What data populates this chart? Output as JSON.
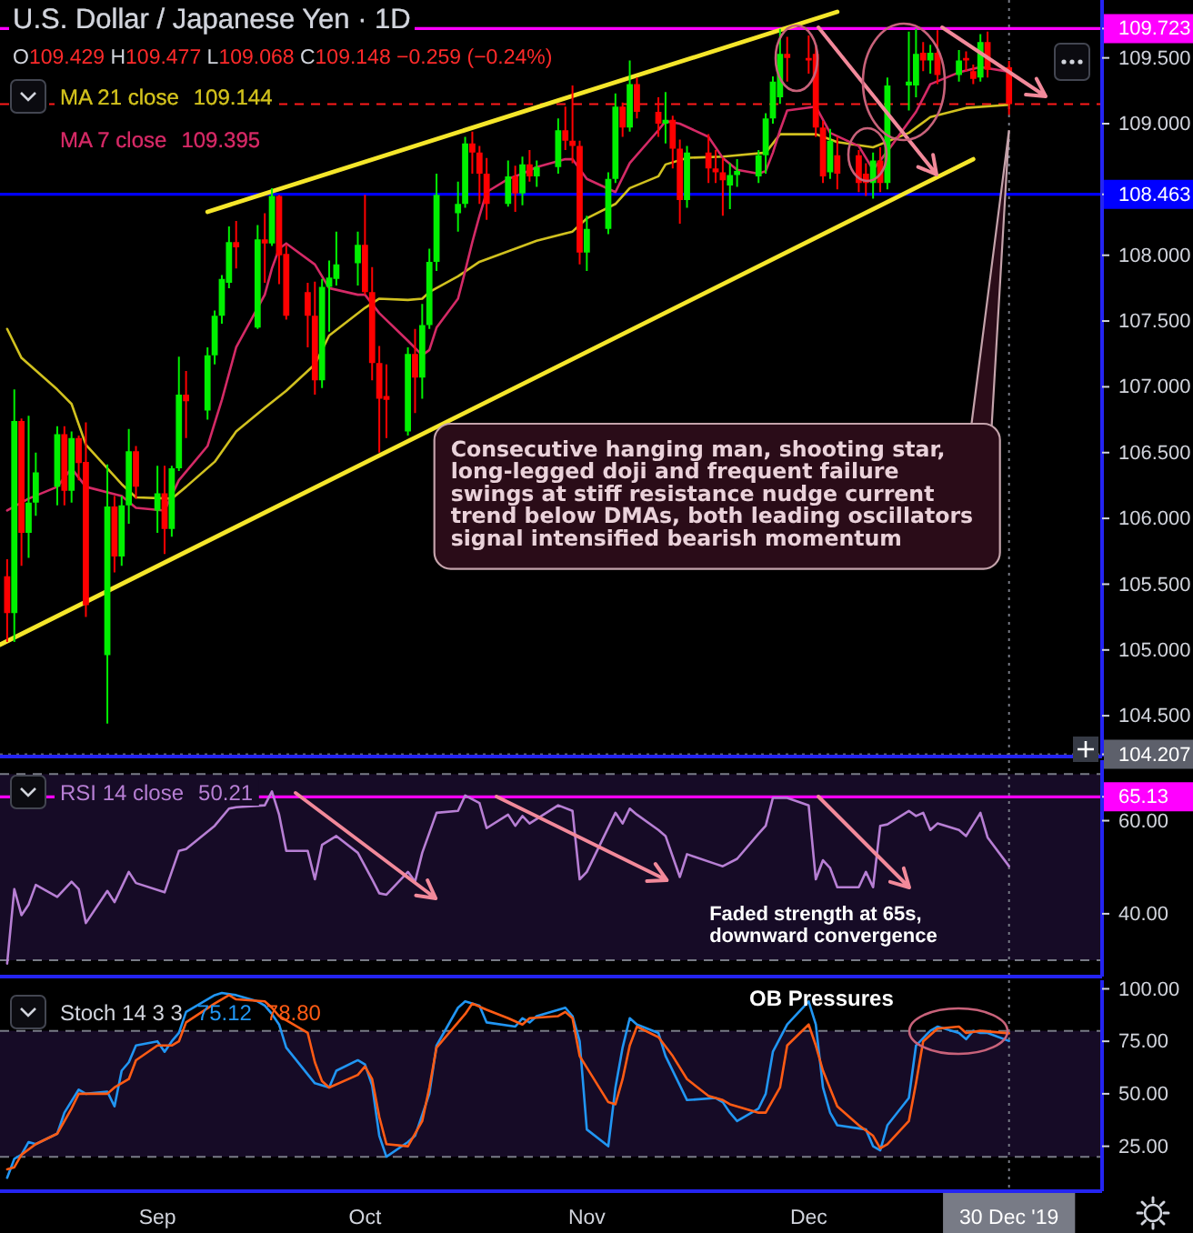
{
  "chart_data": [
    {
      "type": "candlestick",
      "title": "U.S. Dollar / Japanese Yen · 1D",
      "subtitle": "O109.429 H109.477 L109.068 C109.148 −0.259 (−0.24%)",
      "x": [
        "2019-08-12",
        "2019-08-13",
        "2019-08-14",
        "2019-08-15",
        "2019-08-16",
        "2019-08-19",
        "2019-08-20",
        "2019-08-21",
        "2019-08-22",
        "2019-08-23",
        "2019-08-26",
        "2019-08-27",
        "2019-08-28",
        "2019-08-29",
        "2019-08-30",
        "2019-09-02",
        "2019-09-03",
        "2019-09-04",
        "2019-09-05",
        "2019-09-06",
        "2019-09-09",
        "2019-09-10",
        "2019-09-11",
        "2019-09-12",
        "2019-09-13",
        "2019-09-16",
        "2019-09-17",
        "2019-09-18",
        "2019-09-19",
        "2019-09-20",
        "2019-09-23",
        "2019-09-24",
        "2019-09-25",
        "2019-09-26",
        "2019-09-27",
        "2019-09-30",
        "2019-10-01",
        "2019-10-02",
        "2019-10-03",
        "2019-10-04",
        "2019-10-07",
        "2019-10-08",
        "2019-10-09",
        "2019-10-10",
        "2019-10-11",
        "2019-10-14",
        "2019-10-15",
        "2019-10-16",
        "2019-10-17",
        "2019-10-18",
        "2019-10-21",
        "2019-10-22",
        "2019-10-23",
        "2019-10-24",
        "2019-10-25",
        "2019-10-28",
        "2019-10-29",
        "2019-10-30",
        "2019-10-31",
        "2019-11-01",
        "2019-11-04",
        "2019-11-05",
        "2019-11-06",
        "2019-11-07",
        "2019-11-08",
        "2019-11-11",
        "2019-11-12",
        "2019-11-13",
        "2019-11-14",
        "2019-11-15",
        "2019-11-18",
        "2019-11-19",
        "2019-11-20",
        "2019-11-21",
        "2019-11-22",
        "2019-11-25",
        "2019-11-26",
        "2019-11-27",
        "2019-11-28",
        "2019-11-29",
        "2019-12-02",
        "2019-12-03",
        "2019-12-04",
        "2019-12-05",
        "2019-12-06",
        "2019-12-09",
        "2019-12-10",
        "2019-12-11",
        "2019-12-12",
        "2019-12-13",
        "2019-12-16",
        "2019-12-17",
        "2019-12-18",
        "2019-12-19",
        "2019-12-20",
        "2019-12-23",
        "2019-12-24",
        "2019-12-25",
        "2019-12-26",
        "2019-12-27",
        "2019-12-30"
      ],
      "ohlc": [
        [
          105.56,
          105.69,
          105.06,
          105.28
        ],
        [
          105.28,
          106.98,
          105.06,
          106.74
        ],
        [
          106.74,
          106.76,
          105.64,
          105.89
        ],
        [
          105.89,
          106.78,
          105.7,
          106.12
        ],
        [
          106.12,
          106.5,
          106.02,
          106.35
        ],
        [
          106.24,
          106.7,
          106.1,
          106.64
        ],
        [
          106.64,
          106.7,
          106.1,
          106.21
        ],
        [
          106.21,
          106.66,
          106.12,
          106.61
        ],
        [
          106.61,
          106.63,
          106.29,
          106.42
        ],
        [
          106.43,
          106.73,
          105.25,
          105.34
        ],
        [
          104.96,
          106.41,
          104.44,
          106.09
        ],
        [
          106.09,
          106.17,
          105.59,
          105.71
        ],
        [
          105.71,
          106.17,
          105.64,
          106.1
        ],
        [
          106.1,
          106.68,
          105.96,
          106.51
        ],
        [
          106.51,
          106.55,
          106.15,
          106.24
        ],
        [
          106.06,
          106.4,
          105.89,
          106.19
        ],
        [
          106.19,
          106.4,
          105.73,
          105.92
        ],
        [
          105.92,
          106.4,
          105.86,
          106.38
        ],
        [
          106.38,
          107.23,
          106.36,
          106.94
        ],
        [
          106.94,
          107.12,
          106.61,
          106.89
        ],
        [
          106.82,
          107.3,
          106.75,
          107.24
        ],
        [
          107.24,
          107.58,
          107.17,
          107.54
        ],
        [
          107.54,
          107.85,
          107.48,
          107.82
        ],
        [
          107.79,
          108.22,
          107.75,
          108.1
        ],
        [
          108.1,
          108.26,
          107.9,
          108.06
        ],
        [
          107.45,
          108.23,
          107.44,
          108.12
        ],
        [
          108.12,
          108.32,
          107.79,
          108.09
        ],
        [
          108.09,
          108.51,
          108.07,
          108.45
        ],
        [
          108.45,
          108.46,
          107.78,
          108
        ],
        [
          108.01,
          108.08,
          107.51,
          107.54
        ],
        [
          107.72,
          107.79,
          107.3,
          107.54
        ],
        [
          107.54,
          107.8,
          106.94,
          107.05
        ],
        [
          107.05,
          107.82,
          106.99,
          107.76
        ],
        [
          107.76,
          107.96,
          107.42,
          107.83
        ],
        [
          107.82,
          108.18,
          107.77,
          107.93
        ],
        [
          107.94,
          108.18,
          107.77,
          108.08
        ],
        [
          108.08,
          108.46,
          107.7,
          107.72
        ],
        [
          107.72,
          107.91,
          107.05,
          107.18
        ],
        [
          107.18,
          107.31,
          106.5,
          106.91
        ],
        [
          106.93,
          107.17,
          106.61,
          106.9
        ],
        [
          106.66,
          107.3,
          106.63,
          107.25
        ],
        [
          107.25,
          107.44,
          106.8,
          107.07
        ],
        [
          107.07,
          107.63,
          106.91,
          107.47
        ],
        [
          107.47,
          108.05,
          107.44,
          107.95
        ],
        [
          107.95,
          108.62,
          107.88,
          108.46
        ],
        [
          108.32,
          108.56,
          108.18,
          108.39
        ],
        [
          108.39,
          108.9,
          108.36,
          108.85
        ],
        [
          108.85,
          108.94,
          108.62,
          108.78
        ],
        [
          108.78,
          108.83,
          108.39,
          108.62
        ],
        [
          108.62,
          108.74,
          108.27,
          108.39
        ],
        [
          108.39,
          108.72,
          108.37,
          108.6
        ],
        [
          108.6,
          108.68,
          108.33,
          108.47
        ],
        [
          108.47,
          108.75,
          108.38,
          108.69
        ],
        [
          108.69,
          108.8,
          108.56,
          108.6
        ],
        [
          108.6,
          108.72,
          108.52,
          108.67
        ],
        [
          108.67,
          109.04,
          108.62,
          108.95
        ],
        [
          108.95,
          109.13,
          108.8,
          108.87
        ],
        [
          108.87,
          109.29,
          108.7,
          108.83
        ],
        [
          108.83,
          108.87,
          107.93,
          108.02
        ],
        [
          108.02,
          108.3,
          107.88,
          108.2
        ],
        [
          108.2,
          108.63,
          108.16,
          108.58
        ],
        [
          108.58,
          109.23,
          108.55,
          109.13
        ],
        [
          109.13,
          109.16,
          108.9,
          108.97
        ],
        [
          108.97,
          109.48,
          108.94,
          109.3
        ],
        [
          109.3,
          109.35,
          109.04,
          109.09
        ],
        [
          109.09,
          109.2,
          108.9,
          109
        ],
        [
          109,
          109.24,
          108.85,
          109.03
        ],
        [
          109.03,
          109.06,
          108.66,
          108.81
        ],
        [
          108.81,
          108.88,
          108.24,
          108.42
        ],
        [
          108.42,
          108.83,
          108.36,
          108.78
        ],
        [
          108.78,
          108.92,
          108.55,
          108.66
        ],
        [
          108.66,
          108.8,
          108.55,
          108.63
        ],
        [
          108.63,
          108.74,
          108.3,
          108.57
        ],
        [
          108.53,
          108.7,
          108.35,
          108.61
        ],
        [
          108.61,
          108.73,
          108.52,
          108.64
        ],
        [
          108.6,
          108.8,
          108.55,
          108.76
        ],
        [
          108.76,
          109.08,
          108.62,
          109.04
        ],
        [
          109.04,
          109.36,
          109,
          109.32
        ],
        [
          109.2,
          109.72,
          109.15,
          109.53
        ],
        [
          109.53,
          109.66,
          109.32,
          109.5
        ],
        [
          109.5,
          109.67,
          109.38,
          109.48
        ],
        [
          109.53,
          109.6,
          108.9,
          108.97
        ],
        [
          108.97,
          109.02,
          108.55,
          108.6
        ],
        [
          108.63,
          108.96,
          108.58,
          108.87
        ],
        [
          108.76,
          108.9,
          108.5,
          108.62
        ],
        [
          108.76,
          108.8,
          108.48,
          108.55
        ],
        [
          108.62,
          108.7,
          108.45,
          108.55
        ],
        [
          108.55,
          108.78,
          108.43,
          108.72
        ],
        [
          108.72,
          108.82,
          108.48,
          108.55
        ],
        [
          108.55,
          109.35,
          108.5,
          109.29
        ],
        [
          109.29,
          109.7,
          109.1,
          109.32
        ],
        [
          109.29,
          109.72,
          109.2,
          109.53
        ],
        [
          109.54,
          109.62,
          109.4,
          109.48
        ],
        [
          109.48,
          109.6,
          109.38,
          109.54
        ],
        [
          109.54,
          109.71,
          109.3,
          109.37
        ],
        [
          109.37,
          109.56,
          109.32,
          109.48
        ],
        [
          109.5,
          109.55,
          109.4,
          109.48
        ],
        [
          109.4,
          109.45,
          109.3,
          109.34
        ],
        [
          109.35,
          109.68,
          109.32,
          109.62
        ],
        [
          109.62,
          109.7,
          109.35,
          109.41
        ],
        [
          109.429,
          109.477,
          109.068,
          109.148
        ]
      ],
      "series": [
        {
          "name": "MA 21 close",
          "type": "line",
          "color": "#d1c11f",
          "x": [
            "2019-08-12",
            "2019-08-14",
            "2019-08-19",
            "2019-08-21",
            "2019-08-23",
            "2019-08-28",
            "2019-08-30",
            "2019-09-04",
            "2019-09-06",
            "2019-09-10",
            "2019-09-13",
            "2019-09-17",
            "2019-09-20",
            "2019-09-24",
            "2019-09-26",
            "2019-10-01",
            "2019-10-03",
            "2019-10-07",
            "2019-10-09",
            "2019-10-10",
            "2019-10-14",
            "2019-10-17",
            "2019-10-22",
            "2019-10-25",
            "2019-10-30",
            "2019-11-01",
            "2019-11-05",
            "2019-11-07",
            "2019-11-11",
            "2019-11-12",
            "2019-11-15",
            "2019-11-20",
            "2019-11-26",
            "2019-11-28",
            "2019-12-03",
            "2019-12-06",
            "2019-12-11",
            "2019-12-16",
            "2019-12-19",
            "2019-12-24",
            "2019-12-30"
          ],
          "values": [
            107.44,
            107.22,
            106.98,
            106.87,
            106.56,
            106.26,
            106.16,
            106.15,
            106.24,
            106.43,
            106.66,
            106.84,
            106.97,
            107.17,
            107.39,
            107.6,
            107.67,
            107.66,
            107.67,
            107.72,
            107.84,
            107.95,
            108.05,
            108.11,
            108.18,
            108.28,
            108.39,
            108.51,
            108.6,
            108.69,
            108.74,
            108.75,
            108.78,
            108.92,
            108.92,
            108.86,
            108.82,
            108.93,
            109.05,
            109.12,
            109.144
          ]
        },
        {
          "name": "MA 7 close",
          "type": "line",
          "color": "#d42a66",
          "x": [
            "2019-08-12",
            "2019-08-15",
            "2019-08-19",
            "2019-08-21",
            "2019-08-23",
            "2019-08-28",
            "2019-08-30",
            "2019-09-03",
            "2019-09-05",
            "2019-09-09",
            "2019-09-11",
            "2019-09-13",
            "2019-09-17",
            "2019-09-18",
            "2019-09-19",
            "2019-09-20",
            "2019-09-24",
            "2019-09-26",
            "2019-09-30",
            "2019-10-01",
            "2019-10-03",
            "2019-10-07",
            "2019-10-09",
            "2019-10-10",
            "2019-10-11",
            "2019-10-14",
            "2019-10-15",
            "2019-10-16",
            "2019-10-17",
            "2019-10-18",
            "2019-10-21",
            "2019-10-23",
            "2019-10-25",
            "2019-10-29",
            "2019-10-30",
            "2019-11-01",
            "2019-11-05",
            "2019-11-07",
            "2019-11-11",
            "2019-11-12",
            "2019-11-14",
            "2019-11-18",
            "2019-11-20",
            "2019-11-22",
            "2019-11-25",
            "2019-11-26",
            "2019-11-27",
            "2019-11-28",
            "2019-11-29",
            "2019-12-03",
            "2019-12-05",
            "2019-12-09",
            "2019-12-11",
            "2019-12-13",
            "2019-12-17",
            "2019-12-19",
            "2019-12-23",
            "2019-12-26",
            "2019-12-30"
          ],
          "values": [
            106.06,
            106.15,
            106.24,
            106.38,
            106.24,
            106.17,
            106.08,
            106.06,
            106.29,
            106.55,
            106.9,
            107.3,
            107.7,
            107.9,
            108.05,
            108.09,
            107.93,
            107.75,
            107.7,
            107.7,
            107.56,
            107.35,
            107.24,
            107.28,
            107.45,
            107.67,
            107.88,
            108.1,
            108.3,
            108.48,
            108.58,
            108.62,
            108.67,
            108.73,
            108.73,
            108.58,
            108.48,
            108.7,
            108.95,
            109.02,
            109,
            108.9,
            108.74,
            108.65,
            108.62,
            108.64,
            108.78,
            108.95,
            109.1,
            109.13,
            108.93,
            108.83,
            108.65,
            108.79,
            109.09,
            109.3,
            109.39,
            109.43,
            109.395
          ]
        },
        {
          "type": "line",
          "color": "#f5e62a",
          "x": [
            "2019-09-09",
            "2019-12-06"
          ],
          "values": [
            108.33,
            109.85
          ]
        },
        {
          "type": "line",
          "color": "#f5e62a",
          "x": [
            "2019-08-11",
            "2019-12-25"
          ],
          "values": [
            105.04,
            108.73
          ]
        }
      ],
      "xlim": [
        "2019-08-11",
        "2020-01-12"
      ],
      "ylim": [
        104.19,
        109.94
      ],
      "yticks": [
        {
          "value": 104.207,
          "label": "104.207"
        },
        {
          "value": 104.5,
          "label": "104.500"
        },
        {
          "value": 105,
          "label": "105.000"
        },
        {
          "value": 105.5,
          "label": "105.500"
        },
        {
          "value": 106,
          "label": "106.000"
        },
        {
          "value": 106.5,
          "label": "106.500"
        },
        {
          "value": 107,
          "label": "107.000"
        },
        {
          "value": 107.5,
          "label": "107.500"
        },
        {
          "value": 108,
          "label": "108.000"
        },
        {
          "value": 108.463,
          "label": "108.463"
        },
        {
          "value": 109,
          "label": "109.000"
        },
        {
          "value": 109.5,
          "label": "109.500"
        },
        {
          "value": 109.723,
          "label": "109.723"
        }
      ],
      "tick_labels": "y",
      "legend": "top left",
      "ref_lines": [
        {
          "axis": "y",
          "value": 109.723,
          "color": "#ff00ff"
        },
        {
          "axis": "y",
          "value": 108.463,
          "color": "#0000ff"
        },
        {
          "axis": "y",
          "value": 109.148,
          "color": "#ff1a1a",
          "line_style": "dashed"
        },
        {
          "axis": "y",
          "value": 104.207,
          "color": "#5d606b",
          "line_style": "dotted"
        },
        {
          "axis": "x",
          "value": "2019-12-30",
          "color": "#787b86",
          "line_style": "dotted"
        }
      ],
      "annotations": [
        {
          "text": "Consecutive hanging man, shooting star, long-legged doji and frequent failure swings at stiff resistance nudge current trend below DMAs, both leading oscillators signal intensified bearish momentum",
          "x": "2019-12-30",
          "y": 108.95
        },
        "109.144",
        "109.395"
      ]
    },
    {
      "type": "line",
      "series": [
        {
          "name": "RSI 14 close",
          "color": "#b77fd4",
          "x": [
            "2019-08-12",
            "2019-08-13",
            "2019-08-14",
            "2019-08-15",
            "2019-08-16",
            "2019-08-19",
            "2019-08-21",
            "2019-08-22",
            "2019-08-23",
            "2019-08-26",
            "2019-08-27",
            "2019-08-29",
            "2019-08-30",
            "2019-09-03",
            "2019-09-05",
            "2019-09-06",
            "2019-09-10",
            "2019-09-12",
            "2019-09-13",
            "2019-09-17",
            "2019-09-18",
            "2019-09-19",
            "2019-09-20",
            "2019-09-23",
            "2019-09-24",
            "2019-09-25",
            "2019-09-27",
            "2019-09-30",
            "2019-10-02",
            "2019-10-03",
            "2019-10-04",
            "2019-10-07",
            "2019-10-08",
            "2019-10-09",
            "2019-10-11",
            "2019-10-14",
            "2019-10-15",
            "2019-10-17",
            "2019-10-18",
            "2019-10-21",
            "2019-10-22",
            "2019-10-23",
            "2019-10-24",
            "2019-10-28",
            "2019-10-30",
            "2019-10-31",
            "2019-11-01",
            "2019-11-05",
            "2019-11-06",
            "2019-11-07",
            "2019-11-08",
            "2019-11-11",
            "2019-11-12",
            "2019-11-13",
            "2019-11-14",
            "2019-11-15",
            "2019-11-19",
            "2019-11-20",
            "2019-11-22",
            "2019-11-25",
            "2019-11-26",
            "2019-11-27",
            "2019-11-29",
            "2019-12-02",
            "2019-12-03",
            "2019-12-04",
            "2019-12-05",
            "2019-12-06",
            "2019-12-09",
            "2019-12-10",
            "2019-12-11",
            "2019-12-12",
            "2019-12-13",
            "2019-12-16",
            "2019-12-17",
            "2019-12-18",
            "2019-12-19",
            "2019-12-20",
            "2019-12-23",
            "2019-12-24",
            "2019-12-26",
            "2019-12-27",
            "2019-12-30"
          ],
          "values": [
            29.3,
            45.3,
            39.7,
            42,
            46.2,
            43.6,
            46.9,
            45.3,
            38,
            44.9,
            42.5,
            49,
            46.6,
            44.6,
            53.5,
            53.9,
            58.9,
            62.6,
            62.9,
            63.3,
            66.3,
            61.3,
            53.5,
            53.5,
            47.4,
            54.8,
            56.7,
            53.1,
            47.4,
            44.4,
            44.1,
            49,
            46.9,
            53.1,
            61.7,
            62.1,
            65.4,
            63.8,
            58.4,
            61.3,
            58.9,
            61,
            59.4,
            63.3,
            62.1,
            47.4,
            49,
            61.7,
            59.4,
            62.6,
            61.3,
            58,
            56.7,
            52.3,
            47.9,
            52.8,
            50.7,
            50.2,
            51.8,
            57.2,
            58.9,
            64.9,
            64.9,
            63.3,
            47.4,
            51.5,
            49.8,
            45.7,
            45.7,
            49,
            45.7,
            58.9,
            59.2,
            62.1,
            61,
            61.7,
            58,
            59.4,
            58,
            56.7,
            61.7,
            56.4,
            50.21
          ]
        }
      ],
      "xlim": [
        "2019-08-11",
        "2020-01-12"
      ],
      "ylim": [
        26.5,
        73
      ],
      "yticks": [
        {
          "value": 40,
          "label": "40.00"
        },
        {
          "value": 60,
          "label": "60.00"
        },
        {
          "value": 65.13,
          "label": "65.13"
        }
      ],
      "tick_labels": "y",
      "legend": "top left",
      "bands": [
        {
          "axis": "y",
          "from": 30,
          "to": 70,
          "color": "#160b26"
        }
      ],
      "ref_lines": [
        {
          "axis": "y",
          "value": 65.13,
          "color": "#ff00ff"
        },
        {
          "axis": "y",
          "value": 70,
          "color": "#787b86",
          "line_style": "dashed"
        },
        {
          "axis": "y",
          "value": 30,
          "color": "#787b86",
          "line_style": "dashed"
        },
        {
          "axis": "x",
          "value": "2019-12-30",
          "color": "#787b86",
          "line_style": "dotted"
        }
      ],
      "annotations": [
        {
          "text": "Faded strength at 65s, downward convergence",
          "x": "2019-12-11",
          "y": 45.7
        },
        "50.21"
      ]
    },
    {
      "type": "line",
      "title": "Stoch 14 3 3",
      "series": [
        {
          "color": "#2196f3",
          "x": [
            "2019-08-12",
            "2019-08-13",
            "2019-08-14",
            "2019-08-15",
            "2019-08-16",
            "2019-08-19",
            "2019-08-20",
            "2019-08-22",
            "2019-08-23",
            "2019-08-26",
            "2019-08-27",
            "2019-08-28",
            "2019-08-29",
            "2019-08-30",
            "2019-09-02",
            "2019-09-03",
            "2019-09-04",
            "2019-09-05",
            "2019-09-06",
            "2019-09-10",
            "2019-09-11",
            "2019-09-13",
            "2019-09-16",
            "2019-09-17",
            "2019-09-18",
            "2019-09-19",
            "2019-09-20",
            "2019-09-24",
            "2019-09-26",
            "2019-09-27",
            "2019-09-30",
            "2019-10-01",
            "2019-10-02",
            "2019-10-03",
            "2019-10-04",
            "2019-10-07",
            "2019-10-08",
            "2019-10-10",
            "2019-10-11",
            "2019-10-14",
            "2019-10-15",
            "2019-10-17",
            "2019-10-18",
            "2019-10-22",
            "2019-10-23",
            "2019-10-24",
            "2019-10-25",
            "2019-10-29",
            "2019-10-30",
            "2019-10-31",
            "2019-11-01",
            "2019-11-04",
            "2019-11-05",
            "2019-11-06",
            "2019-11-07",
            "2019-11-08",
            "2019-11-11",
            "2019-11-12",
            "2019-11-14",
            "2019-11-15",
            "2019-11-19",
            "2019-11-20",
            "2019-11-21",
            "2019-11-22",
            "2019-11-25",
            "2019-11-26",
            "2019-11-27",
            "2019-11-29",
            "2019-12-02",
            "2019-12-03",
            "2019-12-04",
            "2019-12-05",
            "2019-12-06",
            "2019-12-10",
            "2019-12-11",
            "2019-12-12",
            "2019-12-13",
            "2019-12-16",
            "2019-12-17",
            "2019-12-19",
            "2019-12-20",
            "2019-12-23",
            "2019-12-24",
            "2019-12-25",
            "2019-12-26",
            "2019-12-27",
            "2019-12-30"
          ],
          "values": [
            10,
            19,
            21,
            27,
            26,
            31,
            41,
            52,
            50,
            51,
            44,
            61,
            65,
            73,
            75,
            70,
            75,
            79,
            89,
            97,
            98,
            97,
            94,
            92,
            88,
            83,
            72,
            55,
            53,
            61,
            66,
            64,
            54,
            30,
            20,
            27,
            30,
            50,
            73,
            91,
            94,
            92,
            84,
            82,
            86,
            84,
            87,
            91,
            87,
            75,
            33,
            25,
            53,
            72,
            86,
            83,
            79,
            68,
            54,
            47,
            48,
            46,
            41,
            37,
            43,
            50,
            70,
            83,
            94,
            83,
            53,
            41,
            35,
            33,
            25,
            23,
            35,
            48,
            73,
            80,
            82,
            79,
            76,
            80,
            79,
            79,
            75.12
          ]
        },
        {
          "color": "#ff5b14",
          "x": [
            "2019-08-12",
            "2019-08-13",
            "2019-08-14",
            "2019-08-16",
            "2019-08-19",
            "2019-08-21",
            "2019-08-22",
            "2019-08-26",
            "2019-08-27",
            "2019-08-29",
            "2019-08-30",
            "2019-09-02",
            "2019-09-04",
            "2019-09-05",
            "2019-09-06",
            "2019-09-10",
            "2019-09-12",
            "2019-09-13",
            "2019-09-17",
            "2019-09-18",
            "2019-09-19",
            "2019-09-23",
            "2019-09-24",
            "2019-09-25",
            "2019-09-26",
            "2019-09-30",
            "2019-10-01",
            "2019-10-02",
            "2019-10-03",
            "2019-10-04",
            "2019-10-07",
            "2019-10-09",
            "2019-10-10",
            "2019-10-11",
            "2019-10-15",
            "2019-10-16",
            "2019-10-18",
            "2019-10-21",
            "2019-10-23",
            "2019-10-24",
            "2019-10-28",
            "2019-10-29",
            "2019-10-30",
            "2019-10-31",
            "2019-11-04",
            "2019-11-05",
            "2019-11-06",
            "2019-11-07",
            "2019-11-08",
            "2019-11-11",
            "2019-11-13",
            "2019-11-15",
            "2019-11-18",
            "2019-11-20",
            "2019-11-21",
            "2019-11-25",
            "2019-11-26",
            "2019-11-28",
            "2019-11-29",
            "2019-12-02",
            "2019-12-03",
            "2019-12-04",
            "2019-12-06",
            "2019-12-09",
            "2019-12-11",
            "2019-12-12",
            "2019-12-13",
            "2019-12-16",
            "2019-12-17",
            "2019-12-18",
            "2019-12-20",
            "2019-12-23",
            "2019-12-24",
            "2019-12-26",
            "2019-12-30"
          ],
          "values": [
            14,
            15,
            21,
            26,
            31,
            43,
            50,
            50,
            53,
            57,
            66,
            73,
            73,
            75,
            84,
            93,
            97,
            95,
            94,
            91,
            87,
            79,
            65,
            56,
            53,
            59,
            63,
            57,
            39,
            26,
            25,
            37,
            53,
            72,
            88,
            93,
            90,
            86,
            83,
            86,
            87,
            89,
            86,
            68,
            46,
            45,
            57,
            73,
            82,
            77,
            68,
            57,
            49,
            47,
            45,
            41,
            41,
            53,
            73,
            83,
            73,
            61,
            44,
            35,
            30,
            24,
            26,
            37,
            55,
            75,
            81,
            82,
            79,
            80,
            78.8
          ]
        }
      ],
      "xlim": [
        "2019-08-11",
        "2020-01-12"
      ],
      "ylim": [
        3.6,
        104.1
      ],
      "xticks": [
        {
          "value": "2019-09-02",
          "label": "Sep"
        },
        {
          "value": "2019-10-01",
          "label": "Oct"
        },
        {
          "value": "2019-11-01",
          "label": "Nov"
        },
        {
          "value": "2019-12-02",
          "label": "Dec"
        },
        {
          "value": "2019-12-30",
          "label": "30 Dec '19"
        }
      ],
      "yticks": [
        {
          "value": 25,
          "label": "25.00"
        },
        {
          "value": 50,
          "label": "50.00"
        },
        {
          "value": 75,
          "label": "75.00"
        },
        {
          "value": 100,
          "label": "100.00"
        }
      ],
      "bands": [
        {
          "axis": "y",
          "from": 20,
          "to": 80,
          "color": "#160b26"
        }
      ],
      "ref_lines": [
        {
          "axis": "y",
          "value": 80,
          "color": "#787b86",
          "line_style": "dashed"
        },
        {
          "axis": "y",
          "value": 20,
          "color": "#787b86",
          "line_style": "dashed"
        },
        {
          "axis": "x",
          "value": "2019-12-30",
          "color": "#787b86",
          "line_style": "dotted"
        }
      ],
      "annotations": [
        "75.12",
        "78.80",
        "OB Pressures"
      ]
    }
  ]
}
